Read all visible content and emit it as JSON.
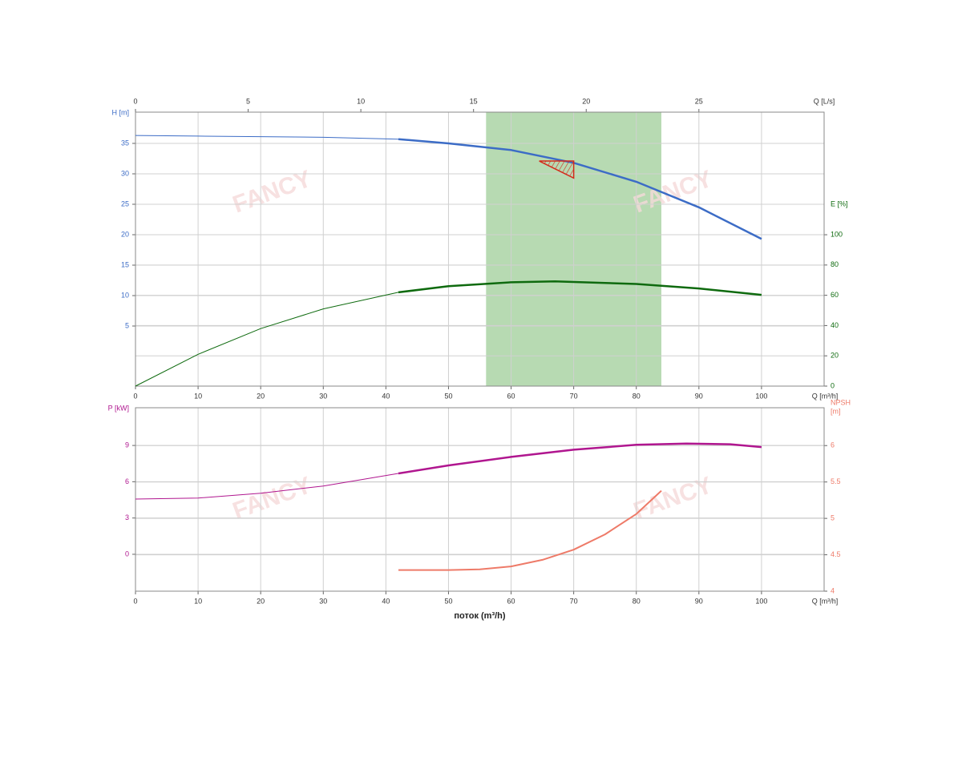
{
  "chart_data": [
    {
      "type": "line",
      "x_label": "Q [m³/h]",
      "xlim": [
        0,
        110
      ],
      "xticks": [
        0,
        10,
        20,
        30,
        40,
        50,
        60,
        70,
        80,
        90,
        100
      ],
      "x2_label": "Q [L/s]",
      "x2lim": [
        0,
        30.556
      ],
      "x2ticks": [
        0,
        5,
        10,
        15,
        20,
        25
      ],
      "y_label": [
        "H [m]"
      ],
      "ylim": [
        -4.87,
        40.13
      ],
      "yticks": [
        5,
        10,
        15,
        20,
        25,
        30,
        35
      ],
      "y2_label": [
        "E [%]"
      ],
      "y2lim": [
        0,
        181
      ],
      "y2ticks": [
        0,
        20,
        40,
        60,
        80,
        100
      ],
      "grid": true,
      "shaded_region": {
        "x": [
          56,
          84
        ],
        "color": "#b7dab2"
      },
      "duty_point": {
        "x": [
          64.5,
          70,
          70
        ],
        "values": [
          32.1,
          32.1,
          29.3
        ],
        "color": "#d42a1a"
      },
      "watermark": "FANCY",
      "series": [
        {
          "color": "#3c6cc6",
          "axis": "y",
          "segments": [
            {
              "width": 1,
              "x": [
                0,
                10,
                20,
                30,
                42
              ],
              "values": [
                36.3,
                36.2,
                36.1,
                36.0,
                35.7
              ]
            },
            {
              "width": 2.5,
              "x": [
                42,
                50,
                60,
                70,
                80,
                90,
                100
              ],
              "values": [
                35.7,
                35.0,
                33.9,
                31.8,
                28.7,
                24.5,
                19.3
              ]
            }
          ]
        },
        {
          "color": "#0e6a0e",
          "axis": "y2",
          "segments": [
            {
              "width": 1,
              "x": [
                0,
                10,
                20,
                30,
                42
              ],
              "values": [
                0,
                21,
                38,
                51,
                62
              ]
            },
            {
              "width": 2.5,
              "x": [
                42,
                50,
                60,
                67,
                80,
                90,
                100
              ],
              "values": [
                62,
                66,
                68.6,
                69.2,
                67.5,
                64.5,
                60.3
              ]
            }
          ]
        }
      ]
    },
    {
      "type": "line",
      "x_label": "Q [m³/h]",
      "xlim": [
        0,
        110
      ],
      "xticks": [
        0,
        10,
        20,
        30,
        40,
        50,
        60,
        70,
        80,
        90,
        100
      ],
      "x_title": "поток (m³/h)",
      "y_label": [
        "P [kW]"
      ],
      "ylim": [
        -3.05,
        12.12
      ],
      "yticks": [
        0,
        3,
        6,
        9
      ],
      "y2_label": [
        "NPSH",
        "[m]"
      ],
      "y2lim": [
        4,
        6.52
      ],
      "y2ticks": [
        4,
        4.5,
        5,
        5.5,
        6
      ],
      "grid": true,
      "watermark": "FANCY",
      "series": [
        {
          "color": "#b0168f",
          "axis": "y",
          "segments": [
            {
              "width": 1,
              "x": [
                0,
                10,
                20,
                30,
                42
              ],
              "values": [
                4.57,
                4.65,
                5.05,
                5.65,
                6.69
              ]
            },
            {
              "width": 2.5,
              "x": [
                42,
                50,
                60,
                70,
                80,
                88,
                95,
                100
              ],
              "values": [
                6.69,
                7.35,
                8.05,
                8.65,
                9.05,
                9.15,
                9.1,
                8.87
              ]
            }
          ]
        },
        {
          "color": "#ee7a68",
          "axis": "y2",
          "segments": [
            {
              "width": 2,
              "x": [
                42,
                50,
                55,
                60,
                65,
                70,
                75,
                80,
                84
              ],
              "values": [
                4.29,
                4.29,
                4.3,
                4.34,
                4.43,
                4.57,
                4.78,
                5.06,
                5.38
              ]
            }
          ]
        }
      ]
    }
  ]
}
